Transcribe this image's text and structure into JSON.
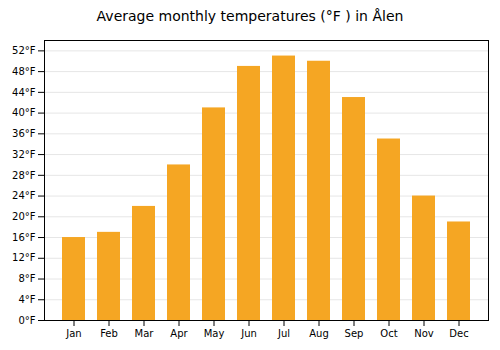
{
  "chart_data": {
    "type": "bar",
    "title": "Average monthly temperatures (°F ) in Å​len",
    "categories": [
      "Jan",
      "Feb",
      "Mar",
      "Apr",
      "May",
      "Jun",
      "Jul",
      "Aug",
      "Sep",
      "Oct",
      "Nov",
      "Dec"
    ],
    "values": [
      16,
      17,
      22,
      30,
      41,
      49,
      51,
      50,
      43,
      35,
      24,
      19
    ],
    "color": "#F5A623",
    "ylim": [
      0,
      54
    ],
    "yticks": [
      {
        "value": 0,
        "label": "0°F"
      },
      {
        "value": 4,
        "label": "4°F"
      },
      {
        "value": 8,
        "label": "8°F"
      },
      {
        "value": 12,
        "label": "12°F"
      },
      {
        "value": 16,
        "label": "16°F"
      },
      {
        "value": 20,
        "label": "20°F"
      },
      {
        "value": 24,
        "label": "24°F"
      },
      {
        "value": 28,
        "label": "28°F"
      },
      {
        "value": 32,
        "label": "32°F"
      },
      {
        "value": 36,
        "label": "36°F"
      },
      {
        "value": 40,
        "label": "40°F"
      },
      {
        "value": 44,
        "label": "44°F"
      },
      {
        "value": 48,
        "label": "48°F"
      },
      {
        "value": 52,
        "label": "52°F"
      }
    ],
    "grid": true
  }
}
